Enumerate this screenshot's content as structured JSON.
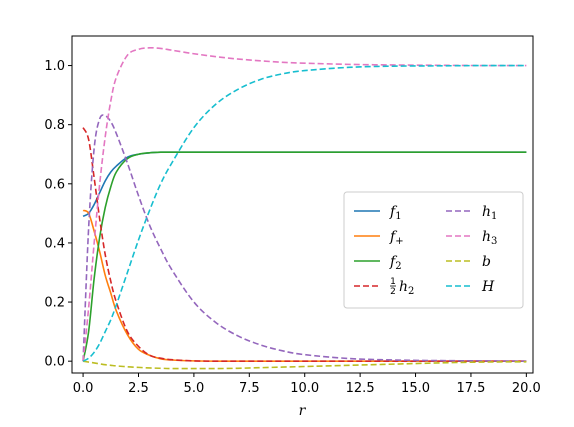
{
  "chart_data": {
    "type": "line",
    "title": "",
    "xlabel": "r",
    "ylabel": "",
    "xlim": [
      -0.5,
      20.3
    ],
    "ylim": [
      -0.04,
      1.1
    ],
    "xticks": [
      0.0,
      2.5,
      5.0,
      7.5,
      10.0,
      12.5,
      15.0,
      17.5,
      20.0
    ],
    "xtick_labels": [
      "0.0",
      "2.5",
      "5.0",
      "7.5",
      "10.0",
      "12.5",
      "15.0",
      "17.5",
      "20.0"
    ],
    "yticks": [
      0.0,
      0.2,
      0.4,
      0.6,
      0.8,
      1.0
    ],
    "ytick_labels": [
      "0.0",
      "0.2",
      "0.4",
      "0.6",
      "0.8",
      "1.0"
    ],
    "grid": false,
    "legend_placement": "center-right",
    "x": [
      0,
      0.25,
      0.5,
      0.75,
      1,
      1.25,
      1.5,
      2,
      2.5,
      3,
      3.5,
      4,
      5,
      6,
      7,
      8,
      9,
      10,
      12,
      14,
      16,
      18,
      20
    ],
    "series": [
      {
        "name": "f_1",
        "legend_main": "f",
        "legend_sub": "1",
        "legend_prefix": "",
        "color": "#1f77b4",
        "dash": "solid",
        "values": [
          0.49,
          0.5,
          0.53,
          0.57,
          0.61,
          0.64,
          0.66,
          0.69,
          0.7,
          0.705,
          0.707,
          0.707,
          0.707,
          0.707,
          0.707,
          0.707,
          0.707,
          0.707,
          0.707,
          0.707,
          0.707,
          0.707,
          0.707
        ]
      },
      {
        "name": "f_+",
        "legend_main": "f",
        "legend_sub": "+",
        "legend_prefix": "",
        "color": "#ff7f0e",
        "dash": "solid",
        "values": [
          0.51,
          0.5,
          0.44,
          0.37,
          0.29,
          0.23,
          0.17,
          0.09,
          0.04,
          0.02,
          0.008,
          0.004,
          0.001,
          0,
          0,
          0,
          0,
          0,
          0,
          0,
          0,
          0,
          0
        ]
      },
      {
        "name": "f_2",
        "legend_main": "f",
        "legend_sub": "2",
        "legend_prefix": "",
        "color": "#2ca02c",
        "dash": "solid",
        "values": [
          0,
          0.1,
          0.28,
          0.42,
          0.52,
          0.59,
          0.64,
          0.685,
          0.7,
          0.705,
          0.707,
          0.707,
          0.707,
          0.707,
          0.707,
          0.707,
          0.707,
          0.707,
          0.707,
          0.707,
          0.707,
          0.707,
          0.707
        ]
      },
      {
        "name": "1/2 h_2",
        "legend_main": "h",
        "legend_sub": "2",
        "legend_prefix": "1/2",
        "color": "#d62728",
        "dash": "dashed",
        "values": [
          0.79,
          0.75,
          0.62,
          0.48,
          0.36,
          0.27,
          0.2,
          0.1,
          0.05,
          0.02,
          0.01,
          0.005,
          0.001,
          0,
          0,
          0,
          0,
          0,
          0,
          0,
          0,
          0,
          0
        ]
      },
      {
        "name": "h_1",
        "legend_main": "h",
        "legend_sub": "1",
        "legend_prefix": "",
        "color": "#9467bd",
        "dash": "dashed",
        "values": [
          0,
          0.45,
          0.72,
          0.82,
          0.83,
          0.81,
          0.77,
          0.67,
          0.56,
          0.46,
          0.38,
          0.31,
          0.2,
          0.13,
          0.085,
          0.055,
          0.035,
          0.022,
          0.009,
          0.004,
          0.002,
          0.001,
          0
        ]
      },
      {
        "name": "h_3",
        "legend_main": "h",
        "legend_sub": "3",
        "legend_prefix": "",
        "color": "#e377c2",
        "dash": "dashed",
        "values": [
          0,
          0.18,
          0.4,
          0.6,
          0.76,
          0.88,
          0.96,
          1.035,
          1.055,
          1.06,
          1.058,
          1.052,
          1.04,
          1.03,
          1.022,
          1.016,
          1.011,
          1.008,
          1.004,
          1.002,
          1.001,
          1.0,
          1.0
        ]
      },
      {
        "name": "b",
        "legend_main": "b",
        "legend_sub": "",
        "legend_prefix": "",
        "color": "#bcbd22",
        "dash": "dashed",
        "values": [
          0,
          -0.003,
          -0.006,
          -0.009,
          -0.012,
          -0.014,
          -0.016,
          -0.019,
          -0.021,
          -0.023,
          -0.024,
          -0.025,
          -0.025,
          -0.025,
          -0.024,
          -0.022,
          -0.02,
          -0.018,
          -0.014,
          -0.01,
          -0.006,
          -0.003,
          -0.002
        ]
      },
      {
        "name": "H",
        "legend_main": "H",
        "legend_sub": "",
        "legend_prefix": "",
        "color": "#17becf",
        "dash": "dashed",
        "values": [
          0,
          0.01,
          0.03,
          0.06,
          0.1,
          0.14,
          0.19,
          0.3,
          0.41,
          0.51,
          0.6,
          0.67,
          0.79,
          0.87,
          0.92,
          0.953,
          0.972,
          0.983,
          0.994,
          0.998,
          0.999,
          1.0,
          1.0
        ]
      }
    ]
  }
}
